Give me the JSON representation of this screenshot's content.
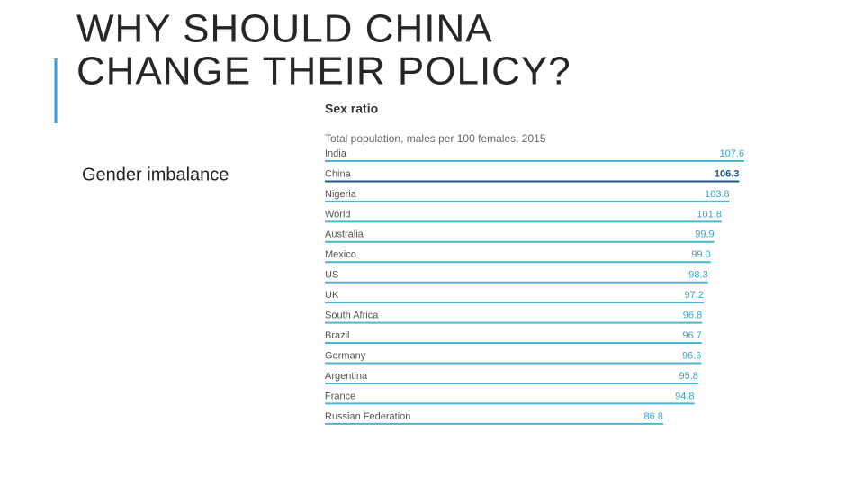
{
  "slide": {
    "title_lines": [
      "WHY SHOULD CHINA",
      "CHANGE THEIR POLICY?"
    ],
    "bullet": "Gender imbalance"
  },
  "chart_data": {
    "type": "bar",
    "orientation": "horizontal",
    "title": "Sex ratio",
    "subtitle": "Total population, males per 100 females, 2015",
    "categories": [
      "India",
      "China",
      "Nigeria",
      "World",
      "Australia",
      "Mexico",
      "US",
      "UK",
      "South Africa",
      "Brazil",
      "Germany",
      "Argentina",
      "France",
      "Russian Federation"
    ],
    "values": [
      107.6,
      106.3,
      103.8,
      101.8,
      99.9,
      99.0,
      98.3,
      97.2,
      96.8,
      96.7,
      96.6,
      95.8,
      94.8,
      86.8
    ],
    "value_labels": [
      "107.6",
      "106.3",
      "103.8",
      "101.8",
      "99.9",
      "99.0",
      "98.3",
      "97.2",
      "96.8",
      "96.7",
      "96.6",
      "95.8",
      "94.8",
      "86.8"
    ],
    "colors": [
      "#4cb6d6",
      "#1d5b86",
      "#4cb6d6",
      "#4cb6d6",
      "#4cb6d6",
      "#4cb6d6",
      "#4cb6d6",
      "#4cb6d6",
      "#4cb6d6",
      "#4cb6d6",
      "#4cb6d6",
      "#4cb6d6",
      "#4cb6d6",
      "#4cb6d6"
    ]
  }
}
